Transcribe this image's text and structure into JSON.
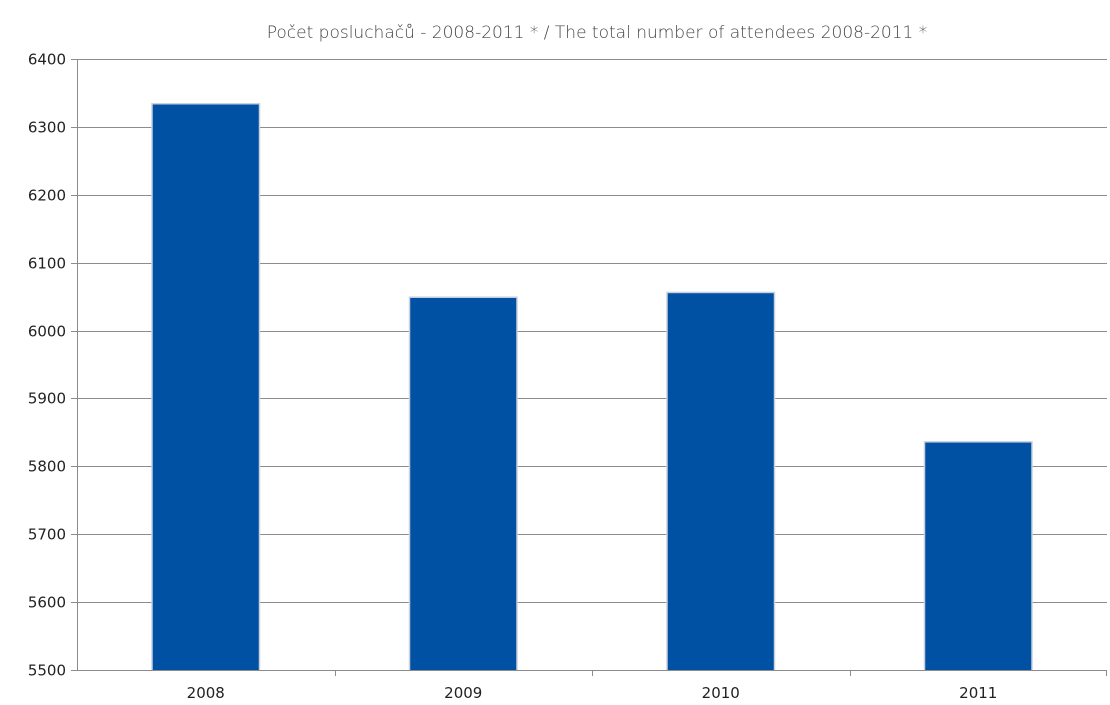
{
  "chart_data": {
    "type": "bar",
    "title": "Počet posluchačů - 2008-2011 * / The total number of attendees 2008-2011 *",
    "xlabel": "",
    "ylabel": "",
    "categories": [
      "2008",
      "2009",
      "2010",
      "2011"
    ],
    "values": [
      6333,
      6048,
      6055,
      5835
    ],
    "ylim": [
      5500,
      6400
    ],
    "yticks": [
      5500,
      5600,
      5700,
      5800,
      5900,
      6000,
      6100,
      6200,
      6300,
      6400
    ],
    "grid": true,
    "legend": "none",
    "colors": {
      "bar": "#0051A3",
      "bar_edge": "#c9d1dc",
      "grid": "#8c8c8c"
    }
  }
}
